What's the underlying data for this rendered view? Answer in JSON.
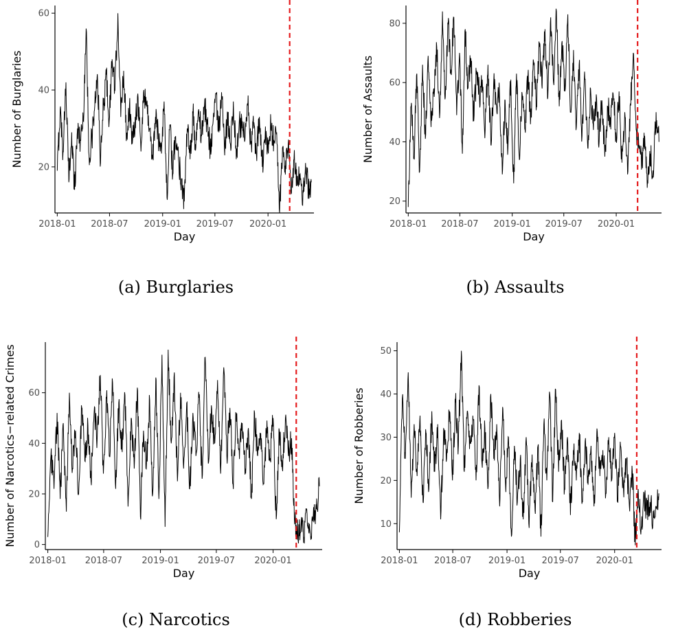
{
  "colors": {
    "series": "#000000",
    "marker_line": "#e41a1c",
    "axis": "#000000",
    "tick_label": "#4d4d4d"
  },
  "chart_data": [
    {
      "type": "line",
      "caption": "(a) Burglaries",
      "xlabel": "Day",
      "ylabel": "Number of Burglaries",
      "x_ticks": [
        "2018-01",
        "2018-07",
        "2019-01",
        "2019-07",
        "2020-01"
      ],
      "y_ticks": [
        20,
        40,
        60
      ],
      "x_range": [
        "2018-01-01",
        "2020-05-31"
      ],
      "ylim": [
        8,
        62
      ],
      "vertical_line": "2020-03-16",
      "series": [
        {
          "x": [
            "2018-01-01",
            "2018-01-11",
            "2018-01-21",
            "2018-01-31",
            "2018-02-10",
            "2018-02-20",
            "2018-03-02",
            "2018-03-12",
            "2018-03-22",
            "2018-04-01",
            "2018-04-11",
            "2018-04-21",
            "2018-05-01",
            "2018-05-11",
            "2018-05-21",
            "2018-05-31",
            "2018-06-10",
            "2018-06-20",
            "2018-06-30",
            "2018-07-10",
            "2018-07-20",
            "2018-07-30",
            "2018-08-09",
            "2018-08-19",
            "2018-08-29",
            "2018-09-08",
            "2018-09-18",
            "2018-09-28",
            "2018-10-08",
            "2018-10-18",
            "2018-10-28",
            "2018-11-07",
            "2018-11-17",
            "2018-11-27",
            "2018-12-07",
            "2018-12-17",
            "2018-12-27",
            "2019-01-06",
            "2019-01-16",
            "2019-01-26",
            "2019-02-05",
            "2019-02-15",
            "2019-02-25",
            "2019-03-07",
            "2019-03-17",
            "2019-03-27",
            "2019-04-06",
            "2019-04-16",
            "2019-04-26",
            "2019-05-06",
            "2019-05-16",
            "2019-05-26",
            "2019-06-05",
            "2019-06-15",
            "2019-06-25",
            "2019-07-05",
            "2019-07-15",
            "2019-07-25",
            "2019-08-04",
            "2019-08-14",
            "2019-08-24",
            "2019-09-03",
            "2019-09-13",
            "2019-09-23",
            "2019-10-03",
            "2019-10-13",
            "2019-10-23",
            "2019-11-02",
            "2019-11-12",
            "2019-11-22",
            "2019-12-02",
            "2019-12-12",
            "2019-12-22",
            "2020-01-01",
            "2020-01-11",
            "2020-01-21",
            "2020-01-31",
            "2020-02-10",
            "2020-02-20",
            "2020-03-01",
            "2020-03-11",
            "2020-03-21",
            "2020-03-31",
            "2020-04-10",
            "2020-04-20",
            "2020-04-30",
            "2020-05-10",
            "2020-05-20",
            "2020-05-30"
          ],
          "values": [
            19,
            35,
            24,
            42,
            16,
            29,
            14,
            30,
            27,
            32,
            56,
            23,
            27,
            36,
            42,
            21,
            36,
            44,
            32,
            48,
            40,
            60,
            33,
            45,
            28,
            36,
            26,
            33,
            38,
            24,
            40,
            36,
            30,
            22,
            33,
            28,
            25,
            37,
            12,
            31,
            18,
            28,
            22,
            17,
            11,
            30,
            22,
            34,
            25,
            35,
            28,
            36,
            31,
            25,
            32,
            39,
            29,
            38,
            23,
            34,
            26,
            37,
            22,
            31,
            30,
            27,
            36,
            26,
            30,
            23,
            33,
            20,
            28,
            24,
            31,
            27,
            29,
            8,
            25,
            18,
            26,
            13,
            22,
            15,
            18,
            10,
            21,
            14,
            16
          ]
        }
      ]
    },
    {
      "type": "line",
      "caption": "(b) Assaults",
      "xlabel": "Day",
      "ylabel": "Number of Assaults",
      "x_ticks": [
        "2018-01",
        "2018-07",
        "2019-01",
        "2019-07",
        "2020-01"
      ],
      "y_ticks": [
        20,
        40,
        60,
        80
      ],
      "x_range": [
        "2018-01-01",
        "2020-05-31"
      ],
      "ylim": [
        16,
        86
      ],
      "vertical_line": "2020-03-16",
      "series": [
        {
          "x": [
            "2018-01-01",
            "2018-01-11",
            "2018-01-21",
            "2018-01-31",
            "2018-02-10",
            "2018-02-20",
            "2018-03-02",
            "2018-03-12",
            "2018-03-22",
            "2018-04-01",
            "2018-04-11",
            "2018-04-21",
            "2018-05-01",
            "2018-05-11",
            "2018-05-21",
            "2018-05-31",
            "2018-06-10",
            "2018-06-20",
            "2018-06-30",
            "2018-07-10",
            "2018-07-20",
            "2018-07-30",
            "2018-08-09",
            "2018-08-19",
            "2018-08-29",
            "2018-09-08",
            "2018-09-18",
            "2018-09-28",
            "2018-10-08",
            "2018-10-18",
            "2018-10-28",
            "2018-11-07",
            "2018-11-17",
            "2018-11-27",
            "2018-12-07",
            "2018-12-17",
            "2018-12-27",
            "2019-01-06",
            "2019-01-16",
            "2019-01-26",
            "2019-02-05",
            "2019-02-15",
            "2019-02-25",
            "2019-03-07",
            "2019-03-17",
            "2019-03-27",
            "2019-04-06",
            "2019-04-16",
            "2019-04-26",
            "2019-05-06",
            "2019-05-16",
            "2019-05-26",
            "2019-06-05",
            "2019-06-15",
            "2019-06-25",
            "2019-07-05",
            "2019-07-15",
            "2019-07-25",
            "2019-08-04",
            "2019-08-14",
            "2019-08-24",
            "2019-09-03",
            "2019-09-13",
            "2019-09-23",
            "2019-10-03",
            "2019-10-13",
            "2019-10-23",
            "2019-11-02",
            "2019-11-12",
            "2019-11-22",
            "2019-12-02",
            "2019-12-12",
            "2019-12-22",
            "2020-01-01",
            "2020-01-11",
            "2020-01-21",
            "2020-01-31",
            "2020-02-10",
            "2020-02-20",
            "2020-03-01",
            "2020-03-11",
            "2020-03-21",
            "2020-03-31",
            "2020-04-10",
            "2020-04-20",
            "2020-04-30",
            "2020-05-10",
            "2020-05-20",
            "2020-05-30"
          ],
          "values": [
            18,
            52,
            35,
            63,
            30,
            66,
            41,
            69,
            45,
            58,
            72,
            48,
            84,
            55,
            80,
            63,
            82,
            49,
            70,
            36,
            78,
            58,
            68,
            47,
            64,
            55,
            61,
            44,
            66,
            39,
            60,
            52,
            57,
            29,
            54,
            38,
            61,
            26,
            63,
            34,
            56,
            44,
            62,
            48,
            67,
            52,
            72,
            58,
            78,
            55,
            82,
            60,
            84,
            52,
            74,
            57,
            83,
            50,
            71,
            45,
            66,
            42,
            61,
            38,
            58,
            44,
            56,
            40,
            54,
            35,
            52,
            48,
            55,
            41,
            57,
            33,
            50,
            29,
            53,
            70,
            44,
            38,
            33,
            42,
            27,
            36,
            28,
            50,
            40
          ]
        }
      ]
    },
    {
      "type": "line",
      "caption": "(c) Narcotics",
      "xlabel": "Day",
      "ylabel": "Number of Narcotics−related Crimes",
      "x_ticks": [
        "2018-01",
        "2018-07",
        "2019-01",
        "2019-07",
        "2020-01"
      ],
      "y_ticks": [
        0,
        20,
        40,
        60
      ],
      "x_range": [
        "2018-01-01",
        "2020-05-31"
      ],
      "ylim": [
        -2,
        80
      ],
      "vertical_line": "2020-03-16",
      "series": [
        {
          "x": [
            "2018-01-01",
            "2018-01-11",
            "2018-01-21",
            "2018-01-31",
            "2018-02-10",
            "2018-02-20",
            "2018-03-02",
            "2018-03-12",
            "2018-03-22",
            "2018-04-01",
            "2018-04-11",
            "2018-04-21",
            "2018-05-01",
            "2018-05-11",
            "2018-05-21",
            "2018-05-31",
            "2018-06-10",
            "2018-06-20",
            "2018-06-30",
            "2018-07-10",
            "2018-07-20",
            "2018-07-30",
            "2018-08-09",
            "2018-08-19",
            "2018-08-29",
            "2018-09-08",
            "2018-09-18",
            "2018-09-28",
            "2018-10-08",
            "2018-10-18",
            "2018-10-28",
            "2018-11-07",
            "2018-11-17",
            "2018-11-27",
            "2018-12-07",
            "2018-12-17",
            "2018-12-27",
            "2019-01-06",
            "2019-01-16",
            "2019-01-26",
            "2019-02-05",
            "2019-02-15",
            "2019-02-25",
            "2019-03-07",
            "2019-03-17",
            "2019-03-27",
            "2019-04-06",
            "2019-04-16",
            "2019-04-26",
            "2019-05-06",
            "2019-05-16",
            "2019-05-26",
            "2019-06-05",
            "2019-06-15",
            "2019-06-25",
            "2019-07-05",
            "2019-07-15",
            "2019-07-25",
            "2019-08-04",
            "2019-08-14",
            "2019-08-24",
            "2019-09-03",
            "2019-09-13",
            "2019-09-23",
            "2019-10-03",
            "2019-10-13",
            "2019-10-23",
            "2019-11-02",
            "2019-11-12",
            "2019-11-22",
            "2019-12-02",
            "2019-12-12",
            "2019-12-22",
            "2020-01-01",
            "2020-01-11",
            "2020-01-21",
            "2020-01-31",
            "2020-02-10",
            "2020-02-20",
            "2020-03-01",
            "2020-03-11",
            "2020-03-21",
            "2020-03-31",
            "2020-04-10",
            "2020-04-20",
            "2020-04-30",
            "2020-05-10",
            "2020-05-20",
            "2020-05-30"
          ],
          "values": [
            3,
            35,
            22,
            52,
            18,
            48,
            13,
            60,
            30,
            45,
            20,
            54,
            33,
            47,
            25,
            52,
            42,
            67,
            28,
            58,
            35,
            64,
            22,
            56,
            38,
            59,
            15,
            50,
            30,
            62,
            11,
            45,
            33,
            57,
            20,
            66,
            18,
            75,
            7,
            77,
            40,
            68,
            25,
            60,
            30,
            56,
            22,
            52,
            35,
            58,
            26,
            74,
            32,
            55,
            40,
            65,
            28,
            70,
            35,
            54,
            24,
            52,
            38,
            48,
            30,
            46,
            18,
            52,
            35,
            44,
            24,
            49,
            33,
            50,
            10,
            45,
            30,
            50,
            35,
            42,
            8,
            4,
            7,
            3,
            12,
            5,
            11,
            14,
            23
          ]
        }
      ]
    },
    {
      "type": "line",
      "caption": "(d) Robberies",
      "xlabel": "Day",
      "ylabel": "Number of Robberies",
      "x_ticks": [
        "2018-01",
        "2018-07",
        "2019-01",
        "2019-07",
        "2020-01"
      ],
      "y_ticks": [
        10,
        20,
        30,
        40,
        50
      ],
      "x_range": [
        "2018-01-01",
        "2020-05-31"
      ],
      "ylim": [
        4,
        52
      ],
      "vertical_line": "2020-03-16",
      "series": [
        {
          "x": [
            "2018-01-01",
            "2018-01-11",
            "2018-01-21",
            "2018-01-31",
            "2018-02-10",
            "2018-02-20",
            "2018-03-02",
            "2018-03-12",
            "2018-03-22",
            "2018-04-01",
            "2018-04-11",
            "2018-04-21",
            "2018-05-01",
            "2018-05-11",
            "2018-05-21",
            "2018-05-31",
            "2018-06-10",
            "2018-06-20",
            "2018-06-30",
            "2018-07-10",
            "2018-07-20",
            "2018-07-30",
            "2018-08-09",
            "2018-08-19",
            "2018-08-29",
            "2018-09-08",
            "2018-09-18",
            "2018-09-28",
            "2018-10-08",
            "2018-10-18",
            "2018-10-28",
            "2018-11-07",
            "2018-11-17",
            "2018-11-27",
            "2018-12-07",
            "2018-12-17",
            "2018-12-27",
            "2019-01-06",
            "2019-01-16",
            "2019-01-26",
            "2019-02-05",
            "2019-02-15",
            "2019-02-25",
            "2019-03-07",
            "2019-03-17",
            "2019-03-27",
            "2019-04-06",
            "2019-04-16",
            "2019-04-26",
            "2019-05-06",
            "2019-05-16",
            "2019-05-26",
            "2019-06-05",
            "2019-06-15",
            "2019-06-25",
            "2019-07-05",
            "2019-07-15",
            "2019-07-25",
            "2019-08-04",
            "2019-08-14",
            "2019-08-24",
            "2019-09-03",
            "2019-09-13",
            "2019-09-23",
            "2019-10-03",
            "2019-10-13",
            "2019-10-23",
            "2019-11-02",
            "2019-11-12",
            "2019-11-22",
            "2019-12-02",
            "2019-12-12",
            "2019-12-22",
            "2020-01-01",
            "2020-01-11",
            "2020-01-21",
            "2020-01-31",
            "2020-02-10",
            "2020-02-20",
            "2020-03-01",
            "2020-03-11",
            "2020-03-21",
            "2020-03-31",
            "2020-04-10",
            "2020-04-20",
            "2020-04-30",
            "2020-05-10",
            "2020-05-20",
            "2020-05-30"
          ],
          "values": [
            8,
            39,
            25,
            45,
            16,
            33,
            21,
            35,
            15,
            31,
            18,
            36,
            22,
            33,
            11,
            32,
            25,
            36,
            20,
            38,
            28,
            50,
            22,
            36,
            29,
            34,
            20,
            42,
            24,
            32,
            18,
            40,
            25,
            33,
            14,
            37,
            19,
            30,
            7,
            28,
            15,
            25,
            11,
            30,
            9,
            26,
            13,
            28,
            7,
            33,
            20,
            40,
            15,
            41,
            22,
            34,
            18,
            30,
            12,
            27,
            20,
            31,
            15,
            29,
            19,
            28,
            14,
            32,
            21,
            27,
            17,
            30,
            20,
            31,
            16,
            28,
            18,
            25,
            14,
            22,
            5,
            18,
            9,
            17,
            12,
            15,
            11,
            14,
            17
          ]
        }
      ]
    }
  ]
}
